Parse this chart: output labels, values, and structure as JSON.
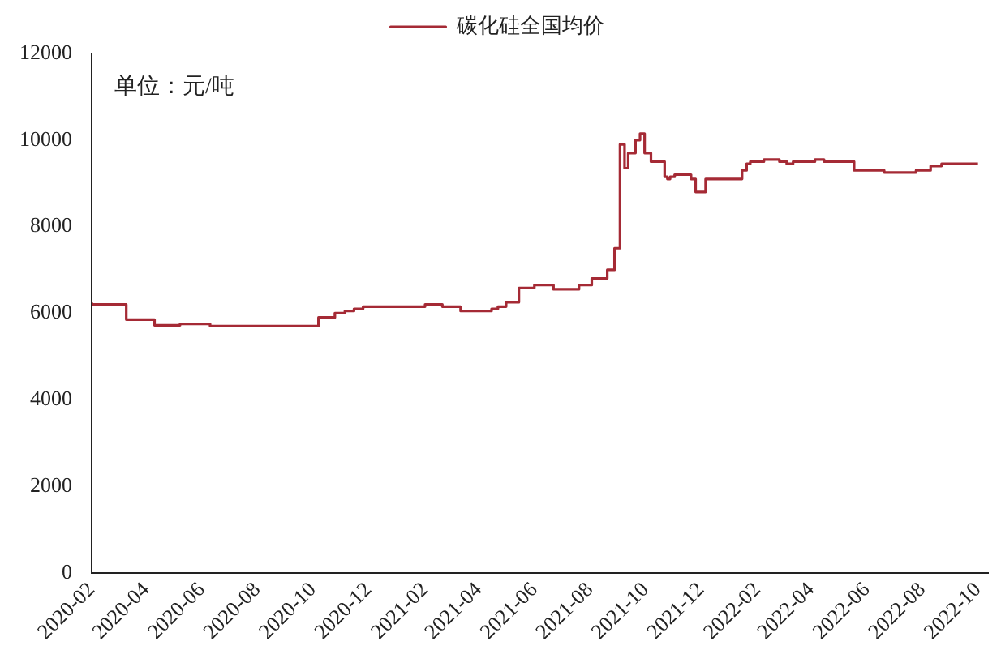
{
  "chart_data": {
    "type": "step",
    "annotations": [
      "单位：元/吨"
    ],
    "x": [
      "2020-02-01",
      "2020-03-10",
      "2020-04-10",
      "2020-05-08",
      "2020-06-10",
      "2020-10-07",
      "2020-10-25",
      "2020-11-05",
      "2020-11-15",
      "2020-11-25",
      "2021-02-01",
      "2021-02-20",
      "2021-03-05",
      "2021-03-12",
      "2021-04-15",
      "2021-04-22",
      "2021-05-01",
      "2021-05-15",
      "2021-05-25",
      "2021-06-01",
      "2021-06-22",
      "2021-07-20",
      "2021-08-03",
      "2021-08-20",
      "2021-08-28",
      "2021-09-03",
      "2021-09-08",
      "2021-09-12",
      "2021-09-20",
      "2021-09-25",
      "2021-09-30",
      "2021-10-07",
      "2021-10-22",
      "2021-10-25",
      "2021-10-28",
      "2021-11-02",
      "2021-11-20",
      "2021-11-25",
      "2021-12-06",
      "2022-01-15",
      "2022-01-20",
      "2022-01-24",
      "2022-02-08",
      "2022-02-25",
      "2022-03-05",
      "2022-03-12",
      "2022-04-05",
      "2022-04-15",
      "2022-05-18",
      "2022-06-20",
      "2022-07-25",
      "2022-08-10",
      "2022-08-22",
      "2022-08-30",
      "2022-10-01"
    ],
    "series": [
      {
        "name": "碳化硅全国均价",
        "color": "#a52a35",
        "values": [
          6250,
          6200,
          5850,
          5720,
          5750,
          5700,
          5900,
          6000,
          6050,
          6100,
          6150,
          6200,
          6150,
          6150,
          6050,
          6100,
          6150,
          6250,
          6580,
          6580,
          6650,
          6550,
          6650,
          6800,
          7000,
          7500,
          9900,
          9350,
          9700,
          10000,
          10150,
          9700,
          9500,
          9150,
          9100,
          9150,
          9200,
          9100,
          8800,
          9100,
          9300,
          9450,
          9500,
          9550,
          9500,
          9450,
          9500,
          9550,
          9500,
          9300,
          9250,
          9300,
          9400,
          9450,
          9450
        ]
      }
    ],
    "xlim": [
      "2020-02-01",
      "2022-10-12"
    ],
    "xticks": [
      "2020-02",
      "2020-04",
      "2020-06",
      "2020-08",
      "2020-10",
      "2020-12",
      "2021-02",
      "2021-04",
      "2021-06",
      "2021-08",
      "2021-10",
      "2021-12",
      "2022-02",
      "2022-04",
      "2022-06",
      "2022-08",
      "2022-10"
    ],
    "ylim": [
      0,
      12000
    ],
    "yticks": [
      0,
      2000,
      4000,
      6000,
      8000,
      10000,
      12000
    ],
    "grid": false,
    "legend": "top",
    "marker": "none",
    "line_style": "solid"
  }
}
